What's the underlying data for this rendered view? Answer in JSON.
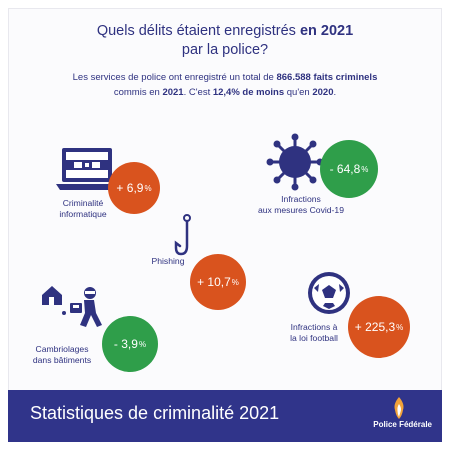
{
  "header": {
    "title_line1_a": "Quels délits étaient enregistrés ",
    "title_line1_b": "en 2021",
    "title_line2": "par la police?",
    "intro_a": "Les services de police ont enregistré un total de ",
    "intro_b": "866.588 faits criminels",
    "intro_c": "commis en ",
    "intro_d": "2021",
    "intro_e": ". C'est ",
    "intro_f": "12,4% de moins",
    "intro_g": " qu'en ",
    "intro_h": "2020",
    "intro_i": "."
  },
  "stats": {
    "cyber": {
      "label1": "Criminalité",
      "label2": "informatique",
      "value": "+ 6,9",
      "pct": "%",
      "icon": "laptop-icon",
      "color": "#d9531e"
    },
    "covid": {
      "label1": "Infractions",
      "label2": "aux mesures Covid-19",
      "value": "- 64,8",
      "pct": "%",
      "icon": "virus-icon",
      "color": "#2f9e4a"
    },
    "phishing": {
      "label1": "Phishing",
      "value": "+ 10,7",
      "pct": "%",
      "icon": "fishhook-icon",
      "color": "#d9531e"
    },
    "burglary": {
      "label1": "Cambriolages",
      "label2": "dans bâtiments",
      "value": "- 3,9",
      "pct": "%",
      "icon": "burglar-icon",
      "color": "#2f9e4a"
    },
    "football": {
      "label1": "Infractions à",
      "label2": "la loi football",
      "value": "+ 225,3",
      "pct": "%",
      "icon": "football-icon",
      "color": "#d9531e"
    }
  },
  "footer": {
    "title": "Statistiques de criminalité 2021",
    "brand": "Police Fédérale",
    "logo_icon": "flame-icon"
  }
}
